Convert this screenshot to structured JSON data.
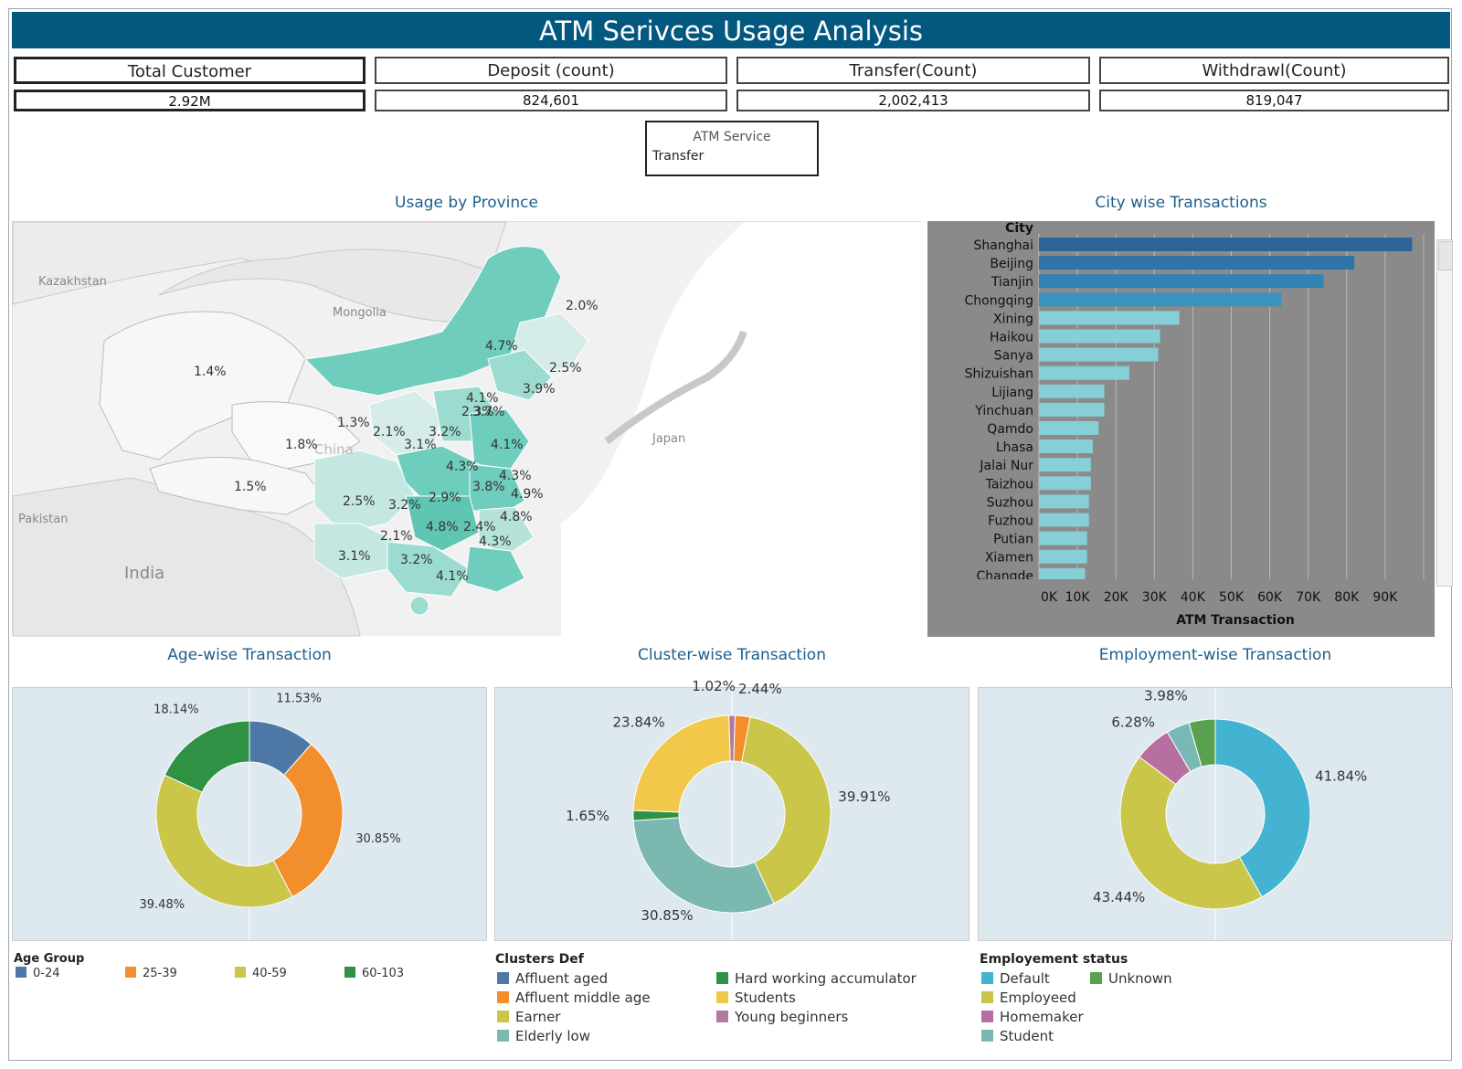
{
  "title": "ATM Serivces Usage Analysis",
  "kpis": [
    {
      "label": "Total Customer",
      "value": "2.92M"
    },
    {
      "label": "Deposit (count)",
      "value": "824,601"
    },
    {
      "label": "Transfer(Count)",
      "value": "2,002,413"
    },
    {
      "label": "Withdrawl(Count)",
      "value": "819,047"
    }
  ],
  "filter": {
    "label": "ATM Service",
    "value": "Transfer"
  },
  "sections": {
    "map": "Usage by Province",
    "city": "City wise Transactions",
    "age": "Age-wise Transaction",
    "cluster": "Cluster-wise Transaction",
    "employment": "Employment-wise Transaction"
  },
  "map_labels": {
    "countries": [
      "Kazakhstan",
      "Mongolia",
      "Japan",
      "Pakistan",
      "India",
      "China"
    ],
    "province_percents": [
      "2.0%",
      "4.7%",
      "2.5%",
      "1.4%",
      "3.9%",
      "4.1%",
      "2.3%",
      "3.7%",
      "1.3%",
      "2.1%",
      "3.2%",
      "1.8%",
      "3.1%",
      "4.1%",
      "4.3%",
      "1.5%",
      "4.3%",
      "3.8%",
      "4.9%",
      "2.5%",
      "3.2%",
      "2.9%",
      "4.8%",
      "2.1%",
      "4.8%",
      "2.4%",
      "4.3%",
      "3.1%",
      "3.2%",
      "4.1%"
    ]
  },
  "colors": {
    "header": "#03587f",
    "map_high": "#6ecdbc",
    "map_low": "#d6ece8",
    "city_top": "#2a6596",
    "city_low": "#86cfd6",
    "pie_bg": "#dde9ef"
  },
  "chart_data": [
    {
      "type": "bar",
      "orientation": "horizontal",
      "title": "City wise Transactions",
      "category_label": "City",
      "xlabel": "ATM Transaction",
      "xlim": [
        0,
        100000
      ],
      "xticks": [
        "0K",
        "10K",
        "20K",
        "30K",
        "40K",
        "50K",
        "60K",
        "70K",
        "80K",
        "90K"
      ],
      "categories": [
        "Shanghai",
        "Beijing",
        "Tianjin",
        "Chongqing",
        "Xining",
        "Haikou",
        "Sanya",
        "Shizuishan",
        "Lijiang",
        "Yinchuan",
        "Qamdo",
        "Lhasa",
        "Jalai Nur",
        "Taizhou",
        "Suzhou",
        "Fuzhou",
        "Putian",
        "Xiamen",
        "Changde"
      ],
      "values": [
        97000,
        82000,
        74000,
        63000,
        36500,
        31500,
        31000,
        23500,
        17000,
        17000,
        15500,
        14000,
        13500,
        13500,
        13000,
        13000,
        12500,
        12500,
        12000
      ],
      "grid": true
    },
    {
      "type": "pie",
      "title": "Age-wise Transaction",
      "legend_title": "Age Group",
      "categories": [
        "0-24",
        "25-39",
        "40-59",
        "60-103"
      ],
      "values": [
        11.53,
        30.85,
        39.48,
        18.14
      ],
      "labels": [
        "11.53%",
        "30.85%",
        "39.48%",
        "18.14%"
      ],
      "colors": [
        "#4e79a7",
        "#f28e2b",
        "#c9c64a",
        "#2e9144"
      ]
    },
    {
      "type": "pie",
      "title": "Cluster-wise Transaction",
      "legend_title": "Clusters Def",
      "legend": [
        "Affluent aged",
        "Affluent middle age",
        "Earner",
        "Elderly low",
        "Hard working accumulator",
        "Students",
        "Young beginners"
      ],
      "legend_colors": [
        "#4e79a7",
        "#f28e2b",
        "#c9c64a",
        "#7ab8b0",
        "#2e9144",
        "#f1c84a",
        "#b07aa1"
      ],
      "slices": [
        {
          "category": "Affluent middle age",
          "value": 2.44,
          "label": "2.44%",
          "color": "#f28e2b"
        },
        {
          "category": "Earner",
          "value": 39.91,
          "label": "39.91%",
          "color": "#c9c64a"
        },
        {
          "category": "Elderly low",
          "value": 30.85,
          "label": "30.85%",
          "color": "#7ab8b0"
        },
        {
          "category": "Hard working accumulator",
          "value": 1.65,
          "label": "1.65%",
          "color": "#2e9144"
        },
        {
          "category": "Students",
          "value": 23.84,
          "label": "23.84%",
          "color": "#f1c84a"
        },
        {
          "category": "Young beginners",
          "value": 1.02,
          "label": "1.02%",
          "color": "#b07aa1"
        }
      ]
    },
    {
      "type": "pie",
      "title": "Employment-wise Transaction",
      "legend_title": "Employement status",
      "legend": [
        "Default",
        "Unknown",
        "Employeed",
        "Homemaker",
        "Student"
      ],
      "legend_colors": [
        "#44b3d1",
        "#59a14f",
        "#c9c64a",
        "#b76ea0",
        "#79b9b5"
      ],
      "slices": [
        {
          "category": "Default",
          "value": 41.84,
          "label": "41.84%",
          "color": "#44b3d1"
        },
        {
          "category": "Employeed",
          "value": 43.44,
          "label": "43.44%",
          "color": "#c9c64a"
        },
        {
          "category": "Homemaker",
          "value": 6.28,
          "label": "6.28%",
          "color": "#b76ea0"
        },
        {
          "category": "Student",
          "value": 3.98,
          "label": "3.98%",
          "color": "#79b9b5"
        },
        {
          "category": "Unknown",
          "value": 4.46,
          "label": "",
          "color": "#59a14f"
        }
      ]
    }
  ]
}
